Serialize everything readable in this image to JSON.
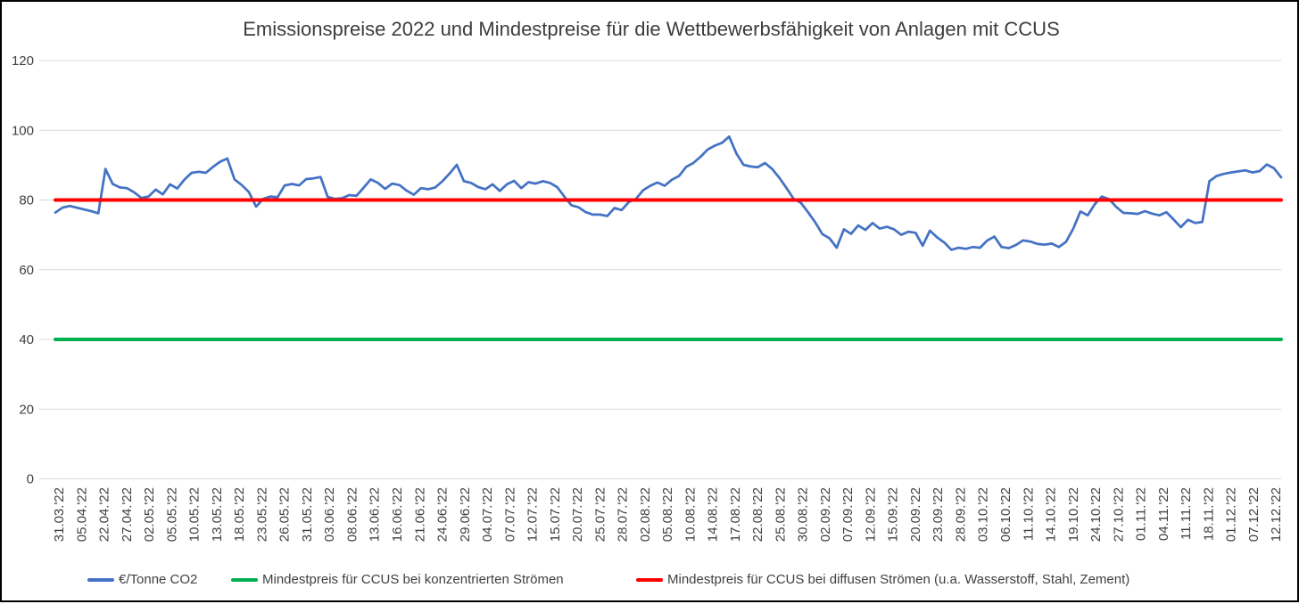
{
  "chart_data": {
    "type": "line",
    "title": "Emissionspreise 2022 und Mindestpreise für die Wettbewerbsfähigkeit von Anlagen mit CCUS",
    "xlabel": "",
    "ylabel": "",
    "ylim": [
      0,
      120
    ],
    "y_ticks": [
      0,
      20,
      40,
      60,
      80,
      100,
      120
    ],
    "grid": true,
    "grid_color": "#D9D9D9",
    "legend_position": "bottom",
    "x_tick_labels": [
      "31.03.'22",
      "05.04.'22",
      "22.04.'22",
      "27.04.'22",
      "02.05.'22",
      "05.05.'22",
      "10.05.'22",
      "13.05.'22",
      "18.05.'22",
      "23.05.'22",
      "26.05.'22",
      "31.05.'22",
      "03.06.'22",
      "08.06.'22",
      "13.06.'22",
      "16.06.'22",
      "21.06.'22",
      "24.06.'22",
      "29.06.'22",
      "04.07.'22",
      "07.07.'22",
      "12.07.'22",
      "15.07.'22",
      "20.07.'22",
      "25.07.'22",
      "28.07.'22",
      "02.08.'22",
      "05.08.'22",
      "10.08.'22",
      "14.08.'22",
      "17.08.'22",
      "22.08.'22",
      "25.08.'22",
      "30.08.'22",
      "02.09.'22",
      "07.09.'22",
      "12.09.'22",
      "15.09.'22",
      "20.09.'22",
      "23.09.'22",
      "28.09.'22",
      "03.10.'22",
      "06.10.'22",
      "11.10.'22",
      "14.10.'22",
      "19.10.'22",
      "24.10.'22",
      "27.10.'22",
      "01.11.'22",
      "04.11.'22",
      "11.11.'22",
      "18.11.'22",
      "01.12.'22",
      "07.12.'22",
      "12.12.'22"
    ],
    "series": [
      {
        "name": "€/Tonne CO2",
        "color": "#4472C4",
        "values": [
          76.4,
          77.8,
          78.3,
          77.8,
          77.3,
          76.8,
          76.2,
          88.9,
          84.6,
          83.6,
          83.4,
          82.2,
          80.6,
          81.0,
          83.0,
          81.6,
          84.5,
          83.3,
          85.8,
          87.8,
          88.1,
          87.8,
          89.5,
          91.0,
          91.9,
          85.9,
          84.3,
          82.3,
          78.1,
          80.3,
          81.0,
          80.8,
          84.2,
          84.6,
          84.2,
          86.0,
          86.2,
          86.6,
          80.9,
          80.3,
          80.5,
          81.4,
          81.2,
          83.5,
          85.9,
          84.9,
          83.2,
          84.7,
          84.3,
          82.7,
          81.5,
          83.4,
          83.1,
          83.6,
          85.4,
          87.6,
          90.1,
          85.4,
          84.9,
          83.7,
          83.1,
          84.5,
          82.6,
          84.5,
          85.5,
          83.4,
          85.1,
          84.7,
          85.4,
          84.9,
          83.7,
          81.0,
          78.5,
          77.9,
          76.5,
          75.8,
          75.8,
          75.4,
          77.7,
          77.1,
          79.4,
          80.3,
          82.8,
          84.1,
          85.0,
          84.1,
          85.8,
          86.9,
          89.5,
          90.6,
          92.4,
          94.5,
          95.6,
          96.4,
          98.2,
          93.4,
          90.1,
          89.6,
          89.4,
          90.6,
          88.9,
          86.4,
          83.4,
          80.3,
          79.2,
          76.5,
          73.6,
          70.2,
          69.0,
          66.3,
          71.6,
          70.3,
          72.7,
          71.4,
          73.4,
          71.8,
          72.3,
          71.6,
          70.0,
          70.9,
          70.6,
          66.9,
          71.2,
          69.3,
          67.8,
          65.7,
          66.3,
          66.0,
          66.5,
          66.3,
          68.4,
          69.5,
          66.5,
          66.2,
          67.1,
          68.4,
          68.1,
          67.4,
          67.2,
          67.5,
          66.5,
          68.0,
          71.8,
          76.7,
          75.6,
          78.8,
          81.0,
          80.2,
          78.0,
          76.3,
          76.2,
          76.0,
          76.8,
          76.1,
          75.6,
          76.5,
          74.4,
          72.2,
          74.3,
          73.4,
          73.7,
          85.4,
          86.9,
          87.5,
          87.9,
          88.2,
          88.5,
          87.9,
          88.3,
          90.2,
          89.1,
          86.5
        ]
      },
      {
        "name": "Mindestpreis für CCUS bei konzentrierten Strömen",
        "color": "#00B050",
        "constant_value": 40
      },
      {
        "name": "Mindestpreis für CCUS bei diffusen Strömen (u.a. Wasserstoff, Stahl, Zement)",
        "color": "#FF0000",
        "constant_value": 80
      }
    ],
    "legend": [
      {
        "label": "€/Tonne CO2",
        "color": "#4472C4"
      },
      {
        "label": "Mindestpreis für CCUS bei konzentrierten Strömen",
        "color": "#00B050"
      },
      {
        "label": "Mindestpreis für CCUS bei diffusen Strömen (u.a. Wasserstoff, Stahl, Zement)",
        "color": "#FF0000"
      }
    ]
  },
  "colors": {
    "accent_blue": "#4472C4",
    "accent_green": "#00B050",
    "accent_red": "#FF0000",
    "grid": "#D9D9D9",
    "text": "#404040",
    "background": "#FFFFFF",
    "border": "#000000"
  }
}
